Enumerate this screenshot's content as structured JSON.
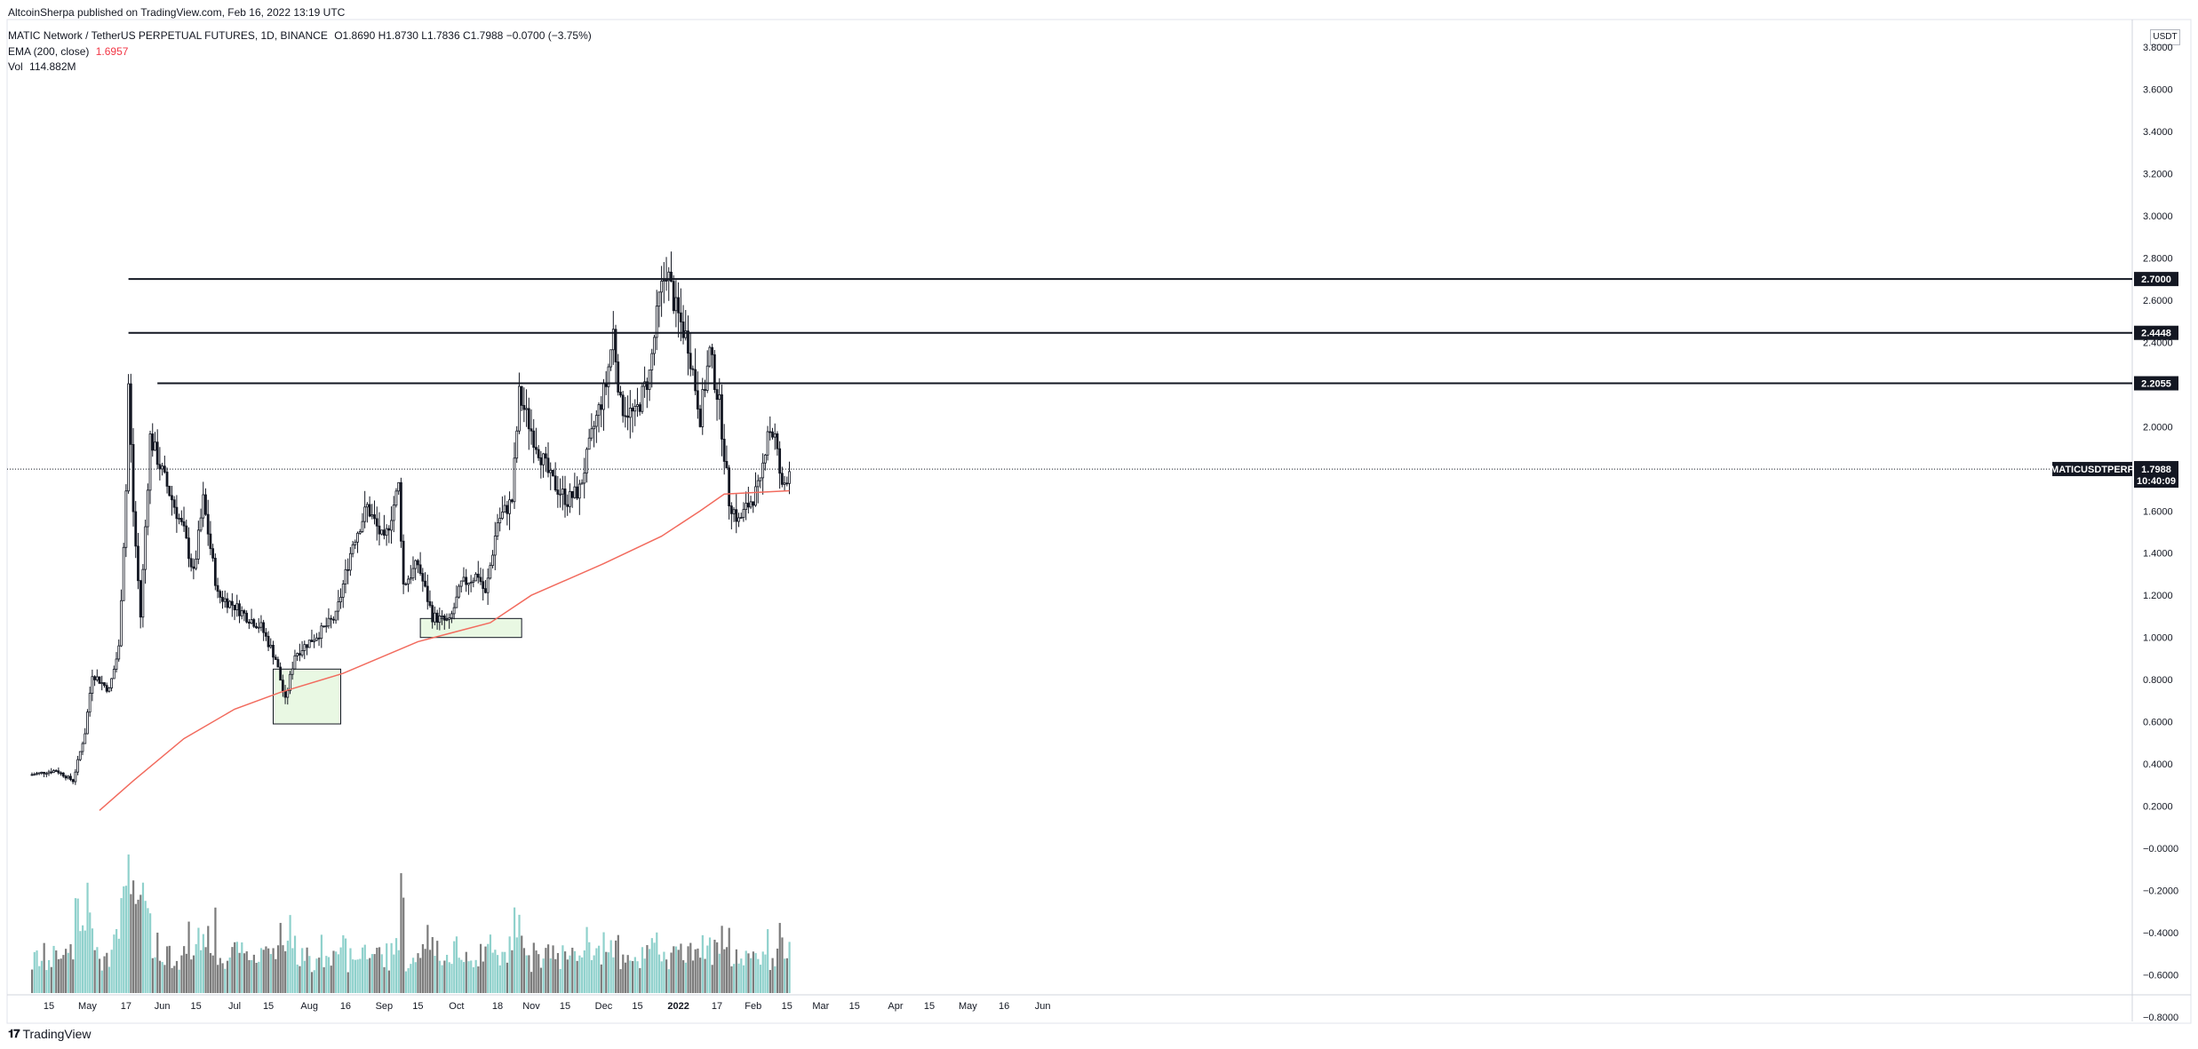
{
  "header": {
    "publisher": "AltcoinSherpa published on TradingView.com, Feb 16, 2022 13:19 UTC",
    "symbol": "MATIC Network / TetherUS PERPETUAL FUTURES, 1D, BINANCE",
    "ohlc": "O1.8690  H1.8730  L1.7836  C1.7988  −0.0700 (−3.75%)",
    "ema_label": "EMA (200, close)",
    "ema_value": "1.6957",
    "vol_label": "Vol",
    "vol_value": "114.882M"
  },
  "footer": {
    "logo_text": "TradingView"
  },
  "colors": {
    "up": "#26a69a",
    "down": "#131722",
    "vol_up": "#8fd1cc",
    "vol_down": "#7b7b7b",
    "ema": "#f26b5e",
    "box_fill": "#e9f8e3",
    "box_stroke": "#131722"
  },
  "chart_data": {
    "type": "candlestick",
    "y_axis": {
      "currency": "USDT",
      "ticks": [
        "3.8000",
        "3.6000",
        "3.4000",
        "3.2000",
        "3.0000",
        "2.8000",
        "2.6000",
        "2.4000",
        "2.2000",
        "2.0000",
        "1.8000",
        "1.6000",
        "1.4000",
        "1.2000",
        "1.0000",
        "0.8000",
        "0.6000",
        "0.4000",
        "0.2000",
        "−0.0000",
        "−0.2000",
        "−0.4000",
        "−0.6000",
        "−0.8000"
      ],
      "tick_values": [
        3.8,
        3.6,
        3.4,
        3.2,
        3.0,
        2.8,
        2.6,
        2.4,
        2.2,
        2.0,
        1.8,
        1.6,
        1.4,
        1.2,
        1.0,
        0.8,
        0.6,
        0.4,
        0.2,
        0.0,
        -0.2,
        -0.4,
        -0.6,
        -0.8
      ]
    },
    "x_axis": {
      "ticks": [
        "15",
        "May",
        "17",
        "Jun",
        "15",
        "Jul",
        "15",
        "Aug",
        "16",
        "Sep",
        "15",
        "Oct",
        "18",
        "Nov",
        "15",
        "Dec",
        "15",
        "2022",
        "17",
        "Feb",
        "15",
        "Mar",
        "15",
        "Apr",
        "15",
        "May",
        "16",
        "Jun"
      ],
      "tick_dates": [
        "2021-04-15",
        "2021-05-01",
        "2021-05-17",
        "2021-06-01",
        "2021-06-15",
        "2021-07-01",
        "2021-07-15",
        "2021-08-01",
        "2021-08-16",
        "2021-09-01",
        "2021-09-15",
        "2021-10-01",
        "2021-10-18",
        "2021-11-01",
        "2021-11-15",
        "2021-12-01",
        "2021-12-15",
        "2022-01-01",
        "2022-01-17",
        "2022-02-01",
        "2022-02-15",
        "2022-03-01",
        "2022-03-15",
        "2022-04-01",
        "2022-04-15",
        "2022-05-01",
        "2022-05-16",
        "2022-06-01"
      ],
      "bold_tick": "2022"
    },
    "horizontal_levels": [
      {
        "label": "2.7000",
        "value": 2.7,
        "start_date": "2021-05-18"
      },
      {
        "label": "2.4448",
        "value": 2.4448,
        "start_date": "2021-05-18"
      },
      {
        "label": "2.2055",
        "value": 2.2055,
        "start_date": "2021-05-30"
      }
    ],
    "last_price": {
      "symbol": "MATICUSDTPERP",
      "value": "1.7988",
      "countdown": "10:40:09"
    },
    "boxes": [
      {
        "date_from": "2021-07-17",
        "date_to": "2021-08-14",
        "price_from": 0.59,
        "price_to": 0.85
      },
      {
        "date_from": "2021-09-16",
        "date_to": "2021-10-28",
        "price_from": 1.0,
        "price_to": 1.09
      }
    ],
    "price_anchors": [
      {
        "date": "2021-04-08",
        "price": 0.35
      },
      {
        "date": "2021-04-18",
        "price": 0.37
      },
      {
        "date": "2021-04-25",
        "price": 0.32
      },
      {
        "date": "2021-04-30",
        "price": 0.55
      },
      {
        "date": "2021-05-03",
        "price": 0.83
      },
      {
        "date": "2021-05-10",
        "price": 0.75
      },
      {
        "date": "2021-05-14",
        "price": 0.95
      },
      {
        "date": "2021-05-17",
        "price": 1.7
      },
      {
        "date": "2021-05-18",
        "price": 2.2
      },
      {
        "date": "2021-05-20",
        "price": 1.6
      },
      {
        "date": "2021-05-23",
        "price": 1.1
      },
      {
        "date": "2021-05-27",
        "price": 1.95
      },
      {
        "date": "2021-06-02",
        "price": 1.75
      },
      {
        "date": "2021-06-10",
        "price": 1.5
      },
      {
        "date": "2021-06-14",
        "price": 1.3
      },
      {
        "date": "2021-06-18",
        "price": 1.65
      },
      {
        "date": "2021-06-24",
        "price": 1.2
      },
      {
        "date": "2021-07-01",
        "price": 1.15
      },
      {
        "date": "2021-07-06",
        "price": 1.1
      },
      {
        "date": "2021-07-12",
        "price": 1.05
      },
      {
        "date": "2021-07-18",
        "price": 0.9
      },
      {
        "date": "2021-07-22",
        "price": 0.7
      },
      {
        "date": "2021-07-26",
        "price": 0.92
      },
      {
        "date": "2021-08-05",
        "price": 1.02
      },
      {
        "date": "2021-08-12",
        "price": 1.1
      },
      {
        "date": "2021-08-19",
        "price": 1.45
      },
      {
        "date": "2021-08-25",
        "price": 1.62
      },
      {
        "date": "2021-09-01",
        "price": 1.45
      },
      {
        "date": "2021-09-07",
        "price": 1.72
      },
      {
        "date": "2021-09-09",
        "price": 1.25
      },
      {
        "date": "2021-09-15",
        "price": 1.35
      },
      {
        "date": "2021-09-21",
        "price": 1.1
      },
      {
        "date": "2021-09-28",
        "price": 1.07
      },
      {
        "date": "2021-10-03",
        "price": 1.25
      },
      {
        "date": "2021-10-10",
        "price": 1.3
      },
      {
        "date": "2021-10-13",
        "price": 1.2
      },
      {
        "date": "2021-10-18",
        "price": 1.55
      },
      {
        "date": "2021-10-24",
        "price": 1.65
      },
      {
        "date": "2021-10-27",
        "price": 2.15
      },
      {
        "date": "2021-11-02",
        "price": 1.95
      },
      {
        "date": "2021-11-09",
        "price": 1.75
      },
      {
        "date": "2021-11-16",
        "price": 1.65
      },
      {
        "date": "2021-11-21",
        "price": 1.7
      },
      {
        "date": "2021-11-27",
        "price": 2.0
      },
      {
        "date": "2021-12-02",
        "price": 2.2
      },
      {
        "date": "2021-12-05",
        "price": 2.45
      },
      {
        "date": "2021-12-08",
        "price": 2.1
      },
      {
        "date": "2021-12-14",
        "price": 2.05
      },
      {
        "date": "2021-12-20",
        "price": 2.25
      },
      {
        "date": "2021-12-24",
        "price": 2.6
      },
      {
        "date": "2021-12-27",
        "price": 2.75
      },
      {
        "date": "2021-12-31",
        "price": 2.55
      },
      {
        "date": "2022-01-05",
        "price": 2.4
      },
      {
        "date": "2022-01-10",
        "price": 2.05
      },
      {
        "date": "2022-01-14",
        "price": 2.35
      },
      {
        "date": "2022-01-18",
        "price": 2.1
      },
      {
        "date": "2022-01-22",
        "price": 1.65
      },
      {
        "date": "2022-01-26",
        "price": 1.55
      },
      {
        "date": "2022-01-31",
        "price": 1.65
      },
      {
        "date": "2022-02-04",
        "price": 1.72
      },
      {
        "date": "2022-02-07",
        "price": 2.0
      },
      {
        "date": "2022-02-10",
        "price": 1.95
      },
      {
        "date": "2022-02-13",
        "price": 1.7
      },
      {
        "date": "2022-02-16",
        "price": 1.8
      }
    ],
    "ema_anchors": [
      {
        "date": "2021-05-06",
        "price": 0.18
      },
      {
        "date": "2021-05-20",
        "price": 0.32
      },
      {
        "date": "2021-06-10",
        "price": 0.52
      },
      {
        "date": "2021-07-01",
        "price": 0.66
      },
      {
        "date": "2021-07-20",
        "price": 0.74
      },
      {
        "date": "2021-08-15",
        "price": 0.83
      },
      {
        "date": "2021-09-15",
        "price": 0.98
      },
      {
        "date": "2021-10-15",
        "price": 1.07
      },
      {
        "date": "2021-11-01",
        "price": 1.2
      },
      {
        "date": "2021-12-01",
        "price": 1.35
      },
      {
        "date": "2021-12-25",
        "price": 1.48
      },
      {
        "date": "2022-01-10",
        "price": 1.6
      },
      {
        "date": "2022-01-20",
        "price": 1.68
      },
      {
        "date": "2022-02-16",
        "price": 1.6957
      }
    ],
    "volume_note": "volume bars plotted in the lower pane, scaled to axis tick values"
  }
}
